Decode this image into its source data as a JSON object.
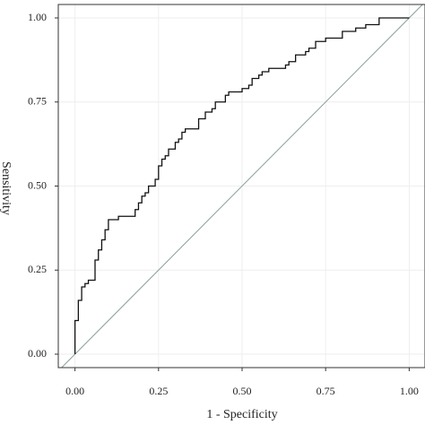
{
  "chart_data": {
    "type": "line",
    "x_label": "1 - Specificity",
    "y_label": "Sensitivity",
    "xlim": [
      -0.05,
      1.05
    ],
    "ylim": [
      -0.04,
      1.04
    ],
    "xticks": [
      {
        "value": 0,
        "label": "0.00"
      },
      {
        "value": 0.25,
        "label": "0.25"
      },
      {
        "value": 0.5,
        "label": "0.50"
      },
      {
        "value": 0.75,
        "label": "0.75"
      },
      {
        "value": 1,
        "label": "1.00"
      }
    ],
    "yticks": [
      {
        "value": 0,
        "label": "0.00"
      },
      {
        "value": 0.25,
        "label": "0.25"
      },
      {
        "value": 0.5,
        "label": "0.50"
      },
      {
        "value": 0.75,
        "label": "0.75"
      },
      {
        "value": 1,
        "label": "1.00"
      }
    ],
    "grid": true,
    "diagonal_color": "#8b9d9d",
    "x": [
      0,
      0,
      0.01,
      0.01,
      0.02,
      0.02,
      0.03,
      0.03,
      0.04,
      0.04,
      0.06,
      0.06,
      0.07,
      0.07,
      0.08,
      0.08,
      0.09,
      0.09,
      0.1,
      0.1,
      0.13,
      0.13,
      0.18,
      0.18,
      0.19,
      0.19,
      0.2,
      0.2,
      0.21,
      0.21,
      0.22,
      0.22,
      0.24,
      0.24,
      0.25,
      0.25,
      0.26,
      0.26,
      0.27,
      0.27,
      0.28,
      0.28,
      0.3,
      0.3,
      0.31,
      0.31,
      0.32,
      0.32,
      0.33,
      0.33,
      0.37,
      0.37,
      0.39,
      0.39,
      0.41,
      0.41,
      0.42,
      0.42,
      0.45,
      0.45,
      0.46,
      0.46,
      0.5,
      0.5,
      0.52,
      0.52,
      0.53,
      0.53,
      0.55,
      0.55,
      0.56,
      0.56,
      0.58,
      0.58,
      0.63,
      0.63,
      0.64,
      0.64,
      0.66,
      0.66,
      0.69,
      0.69,
      0.7,
      0.7,
      0.72,
      0.72,
      0.75,
      0.75,
      0.8,
      0.8,
      0.84,
      0.84,
      0.87,
      0.87,
      0.91,
      0.91,
      1
    ],
    "series": [
      {
        "color": "#111111",
        "values": [
          0,
          0.1,
          0.1,
          0.16,
          0.16,
          0.2,
          0.2,
          0.21,
          0.21,
          0.22,
          0.22,
          0.28,
          0.28,
          0.31,
          0.31,
          0.34,
          0.34,
          0.37,
          0.37,
          0.4,
          0.4,
          0.41,
          0.41,
          0.43,
          0.43,
          0.45,
          0.45,
          0.47,
          0.47,
          0.48,
          0.48,
          0.5,
          0.5,
          0.52,
          0.52,
          0.56,
          0.56,
          0.58,
          0.58,
          0.59,
          0.59,
          0.61,
          0.61,
          0.63,
          0.63,
          0.64,
          0.64,
          0.66,
          0.66,
          0.67,
          0.67,
          0.7,
          0.7,
          0.72,
          0.72,
          0.73,
          0.73,
          0.75,
          0.75,
          0.77,
          0.77,
          0.78,
          0.78,
          0.79,
          0.79,
          0.8,
          0.8,
          0.82,
          0.82,
          0.83,
          0.83,
          0.84,
          0.84,
          0.85,
          0.85,
          0.86,
          0.86,
          0.87,
          0.87,
          0.89,
          0.89,
          0.9,
          0.9,
          0.91,
          0.91,
          0.93,
          0.93,
          0.94,
          0.94,
          0.96,
          0.96,
          0.97,
          0.97,
          0.98,
          0.98,
          1,
          1
        ]
      }
    ]
  }
}
